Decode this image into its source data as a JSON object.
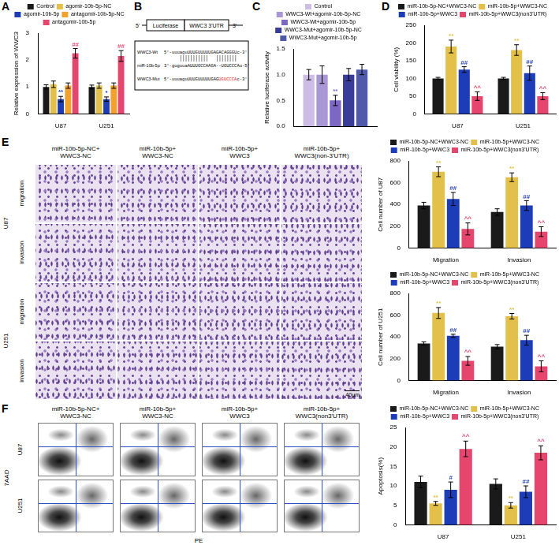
{
  "chart_data": [
    {
      "panel": "A",
      "type": "bar",
      "y_label": "Relative expression of WWC3",
      "categories": [
        "U87",
        "U251"
      ],
      "ylim": [
        0,
        3
      ],
      "yticks": [
        0,
        1,
        2,
        3
      ],
      "grid": false,
      "legend": "top",
      "series": [
        {
          "name": "Control",
          "color": "#1a1a1a",
          "values": [
            1.0,
            1.0
          ],
          "error": [
            0.08,
            0.07
          ]
        },
        {
          "name": "agomir-10b-5p-NC",
          "color": "#e3c04a",
          "values": [
            1.1,
            1.05
          ],
          "error": [
            0.12,
            0.1
          ]
        },
        {
          "name": "agomir-10b-5p",
          "color": "#1c3cb8",
          "values": [
            0.55,
            0.55
          ],
          "error": [
            0.1,
            0.08
          ],
          "marks": [
            "**",
            "*"
          ]
        },
        {
          "name": "antagomir-10b-5p-NC",
          "color": "#f2a12c",
          "values": [
            1.05,
            1.05
          ],
          "error": [
            0.1,
            0.1
          ]
        },
        {
          "name": "antagomir-10b-5p",
          "color": "#e6456e",
          "values": [
            2.25,
            2.15
          ],
          "error": [
            0.18,
            0.2
          ],
          "marks": [
            "##",
            "##"
          ]
        }
      ]
    },
    {
      "panel": "C",
      "type": "bar",
      "y_label": "Relative luciferase activity",
      "categories": [
        null
      ],
      "tick_labels": "y",
      "ylim": [
        0,
        1.5
      ],
      "yticks": [
        {
          "value": 0,
          "label": "0.0"
        },
        {
          "value": 0.5,
          "label": "0.5"
        },
        {
          "value": 1,
          "label": "1.0"
        },
        {
          "value": 1.5,
          "label": "1.5"
        }
      ],
      "grid": false,
      "legend": "top",
      "series": [
        {
          "name": "Control",
          "color": "#cdbde6",
          "values": [
            1.0
          ],
          "error": [
            0.1
          ]
        },
        {
          "name": "WWC3-Wt+agomir-10b-5p-NC",
          "color": "#a996d6",
          "values": [
            1.0
          ],
          "error": [
            0.17
          ]
        },
        {
          "name": "WWC3-Wt+agomir-10b-5p",
          "color": "#7c67c4",
          "values": [
            0.5
          ],
          "error": [
            0.1
          ],
          "marks": [
            "**"
          ]
        },
        {
          "name": "WWC3-Mut+agomir-10b-5p-NC",
          "color": "#3a3c9a",
          "values": [
            1.0
          ],
          "error": [
            0.12
          ]
        },
        {
          "name": "WWC3-Mut+agomir-10b-5p",
          "color": "#4f5aa8",
          "values": [
            1.1
          ],
          "error": [
            0.1
          ]
        }
      ]
    },
    {
      "panel": "D",
      "type": "bar",
      "y_label": "Cell viability (%)",
      "categories": [
        "U87",
        "U251"
      ],
      "ylim": [
        0,
        250
      ],
      "yticks": [
        0,
        50,
        100,
        150,
        200,
        250
      ],
      "grid": false,
      "legend": "top",
      "series": [
        {
          "name": "miR-10b-5p-NC+WWC3-NC",
          "color": "#1a1a1a",
          "values": [
            100,
            100
          ],
          "error": [
            3,
            3
          ]
        },
        {
          "name": "miR-10b-5p+WWC3-NC",
          "color": "#e3c04a",
          "values": [
            190,
            180
          ],
          "error": [
            18,
            15
          ],
          "marks": [
            "**",
            "**"
          ]
        },
        {
          "name": "miR-10b-5p+WWC3",
          "color": "#1c3cb8",
          "values": [
            125,
            115
          ],
          "error": [
            8,
            20
          ],
          "marks": [
            "##",
            "##"
          ]
        },
        {
          "name": "miR-10b-5p+WWC3(non3'UTR)",
          "color": "#e6456e",
          "values": [
            50,
            50
          ],
          "error": [
            12,
            10
          ],
          "marks": [
            "^^",
            "^^"
          ]
        }
      ]
    },
    {
      "type": "bar",
      "y_label": "Cell number of U87",
      "categories": [
        "Migration",
        "Invasion"
      ],
      "ylim": [
        0,
        800
      ],
      "yticks": [
        0,
        200,
        400,
        600,
        800
      ],
      "grid": false,
      "legend": "top",
      "series": [
        {
          "name": "miR-10b-5p-NC+WWC3-NC",
          "color": "#1a1a1a",
          "values": [
            390,
            330
          ],
          "error": [
            30,
            30
          ]
        },
        {
          "name": "miR-10b-5p+WWC3-NC",
          "color": "#e3c04a",
          "values": [
            700,
            650
          ],
          "error": [
            45,
            40
          ],
          "marks": [
            "**",
            "**"
          ]
        },
        {
          "name": "miR-10b-5p+WWC3",
          "color": "#1c3cb8",
          "values": [
            450,
            390
          ],
          "error": [
            60,
            45
          ],
          "marks": [
            "##",
            "##"
          ]
        },
        {
          "name": "miR-10b-5p+WWC3(non3'UTR)",
          "color": "#e6456e",
          "values": [
            175,
            150
          ],
          "error": [
            55,
            45
          ],
          "marks": [
            "^^",
            "^^"
          ]
        }
      ]
    },
    {
      "type": "bar",
      "y_label": "Cell number of U251",
      "categories": [
        "Migration",
        "Invasion"
      ],
      "ylim": [
        0,
        800
      ],
      "yticks": [
        0,
        200,
        400,
        600,
        800
      ],
      "grid": false,
      "legend": "top",
      "series": [
        {
          "name": "miR-10b-5p-NC+WWC3-NC",
          "color": "#1a1a1a",
          "values": [
            340,
            310
          ],
          "error": [
            15,
            20
          ]
        },
        {
          "name": "miR-10b-5p+WWC3-NC",
          "color": "#e3c04a",
          "values": [
            620,
            590
          ],
          "error": [
            50,
            25
          ],
          "marks": [
            "**",
            "**"
          ]
        },
        {
          "name": "miR-10b-5p+WWC3",
          "color": "#1c3cb8",
          "values": [
            410,
            370
          ],
          "error": [
            15,
            45
          ],
          "marks": [
            "##",
            "##"
          ]
        },
        {
          "name": "miR-10b-5p+WWC3(non3'UTR)",
          "color": "#e6456e",
          "values": [
            180,
            130
          ],
          "error": [
            40,
            50
          ],
          "marks": [
            "^^",
            "^^"
          ]
        }
      ]
    },
    {
      "type": "bar",
      "y_label": "Apoptosis(%)",
      "categories": [
        "U87",
        "U251"
      ],
      "ylim": [
        0,
        25
      ],
      "yticks": [
        0,
        5,
        10,
        15,
        20,
        25
      ],
      "grid": false,
      "legend": "top",
      "series": [
        {
          "name": "miR-10b-5p-NC+WWC3-NC",
          "color": "#1a1a1a",
          "values": [
            11,
            10.5
          ],
          "error": [
            1.5,
            1.3
          ]
        },
        {
          "name": "miR-10b-5p+WWC3-NC",
          "color": "#e3c04a",
          "values": [
            5.5,
            5
          ],
          "error": [
            0.5,
            0.7
          ],
          "marks": [
            "**",
            "**"
          ]
        },
        {
          "name": "miR-10b-5p+WWC3",
          "color": "#1c3cb8",
          "values": [
            9,
            8.5
          ],
          "error": [
            2,
            1.5
          ],
          "marks": [
            "#",
            "##"
          ]
        },
        {
          "name": "miR-10b-5p+WWC3(non3'UTR)",
          "color": "#e6456e",
          "values": [
            19.5,
            18.5
          ],
          "error": [
            2,
            1.8
          ],
          "marks": [
            "^^",
            "^^"
          ]
        }
      ]
    }
  ],
  "diagram": {
    "panel": "B",
    "construct": {
      "left_end": "5'",
      "reporter": "Luciferase",
      "utr": "WWC3 3'UTR",
      "right_end": "3'"
    },
    "sequences": [
      {
        "name": "WWC3-Wt",
        "prefix": "5'-uuuaguUUUGUUUUUGAGACAGGGUc-3'",
        "mutated": "",
        "suffix": ""
      },
      {
        "name": "miR-10b-5p",
        "prefix": "3'-guguuaAUUUGCCAAGA--UGUCCCAu-5'",
        "mutated": "",
        "suffix": ""
      },
      {
        "name": "WWC3-Mut",
        "prefix": "5'-uuuaguUUUGUUUUUGAG",
        "mutated": "UGUCCCA",
        "suffix": "c-3'"
      }
    ]
  },
  "images": {
    "panel": "E",
    "columns": [
      [
        "miR-10b-5p-NC+",
        "WWC3-NC"
      ],
      [
        "miR-10b-5p+",
        "WWC3-NC"
      ],
      [
        "miR-10b-5p+",
        "WWC3"
      ],
      [
        "miR-10b-5p+",
        "WWC3(non-3'UTR)"
      ]
    ],
    "rows": [
      {
        "cell_line": "U87",
        "assays": [
          "migration",
          "invasion"
        ]
      },
      {
        "cell_line": "U251",
        "assays": [
          "migration",
          "invasion"
        ]
      }
    ],
    "scale_bar": "40μm"
  },
  "flow": {
    "panel": "F",
    "columns": [
      [
        "miR-10b-5p-NC+",
        "WWC3-NC"
      ],
      [
        "miR-10b-5p+",
        "WWC3-NC"
      ],
      [
        "miR-10b-5p+",
        "WWC3"
      ],
      [
        "miR-10b-5p+",
        "WWC3(non3'UTR)"
      ]
    ],
    "rows": [
      "U87",
      "U251"
    ],
    "x_label": "PE",
    "y_label": "7AAD"
  }
}
